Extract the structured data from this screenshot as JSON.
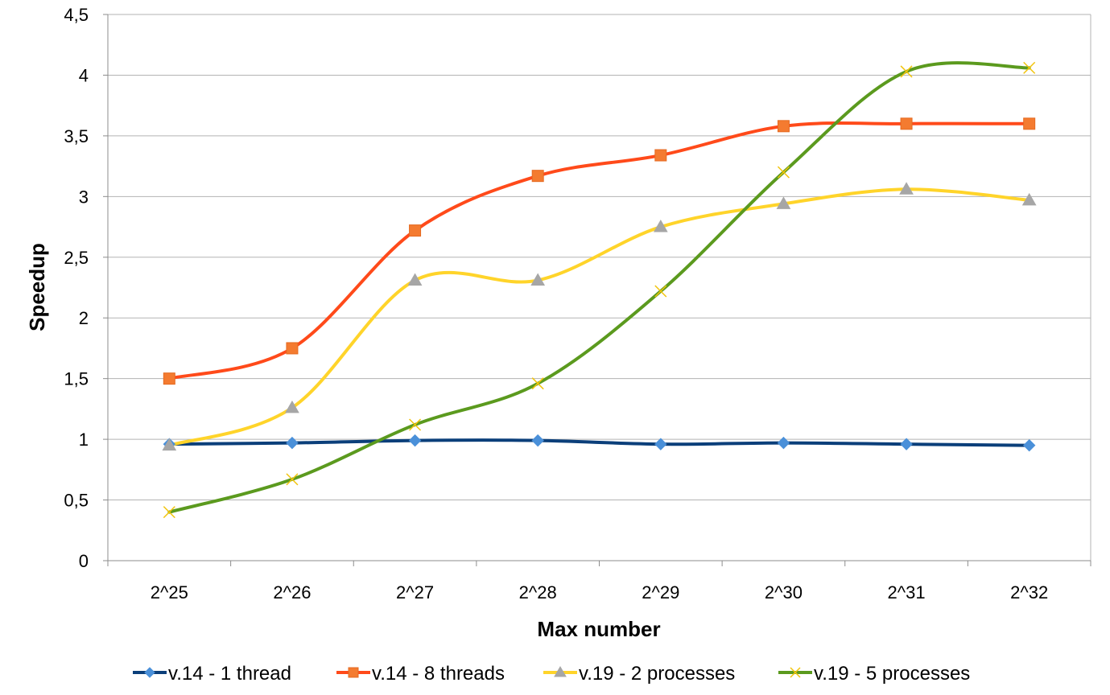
{
  "chart_data": {
    "type": "line",
    "title": "",
    "xlabel": "Max number",
    "ylabel": "Speedup",
    "categories": [
      "2^25",
      "2^26",
      "2^27",
      "2^28",
      "2^29",
      "2^30",
      "2^31",
      "2^32"
    ],
    "ylim": [
      0,
      4.5
    ],
    "yticks": [
      "0",
      "0,5",
      "1",
      "1,5",
      "2",
      "2,5",
      "3",
      "3,5",
      "4",
      "4,5"
    ],
    "grid": "horizontal",
    "legend_position": "bottom",
    "series": [
      {
        "name": "v.14 - 1 thread",
        "values": [
          0.96,
          0.97,
          0.99,
          0.99,
          0.96,
          0.97,
          0.96,
          0.95
        ],
        "line_color": "#0b3f7a",
        "marker": "diamond",
        "marker_color": "#4a90d9"
      },
      {
        "name": "v.14 - 8 threads",
        "values": [
          1.5,
          1.75,
          2.72,
          3.17,
          3.34,
          3.58,
          3.6,
          3.6
        ],
        "line_color": "#ff4a1a",
        "marker": "square",
        "marker_color": "#f47b30"
      },
      {
        "name": "v.19 - 2 processes",
        "values": [
          0.95,
          1.26,
          2.31,
          2.31,
          2.75,
          2.94,
          3.06,
          2.97
        ],
        "line_color": "#ffd42a",
        "marker": "triangle",
        "marker_color": "#a6a6a6"
      },
      {
        "name": "v.19 - 5 processes",
        "values": [
          0.4,
          0.67,
          1.12,
          1.46,
          2.22,
          3.2,
          4.03,
          4.06
        ],
        "line_color": "#5b9a1e",
        "marker": "x",
        "marker_color": "#f2c40c"
      }
    ]
  }
}
